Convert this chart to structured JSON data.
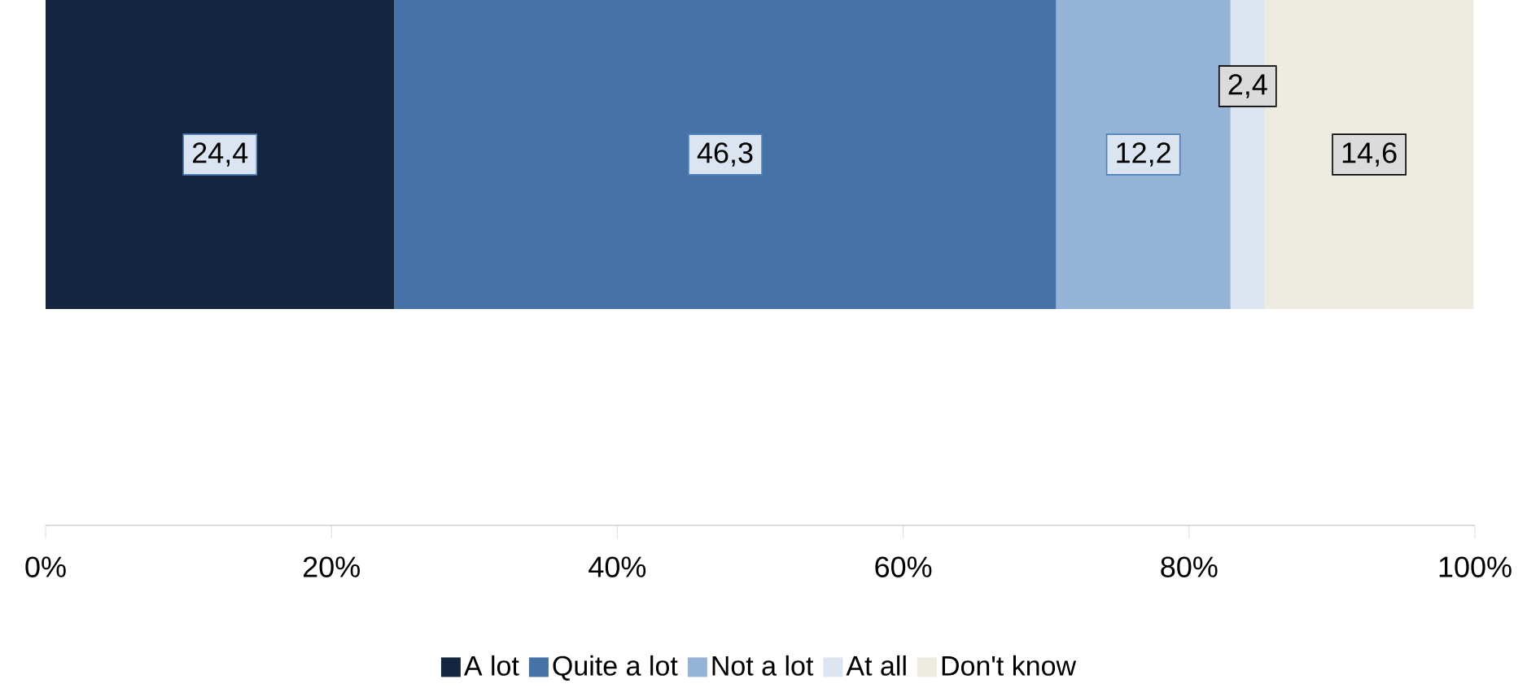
{
  "chart_data": {
    "type": "bar",
    "orientation": "horizontal",
    "stacked": true,
    "categories": [
      null
    ],
    "series": [
      {
        "name": "A lot",
        "color": "#14253f",
        "values": [
          24.4
        ],
        "value_labels": [
          "24,4"
        ]
      },
      {
        "name": "Quite a lot",
        "color": "#4573a7",
        "values": [
          46.3
        ],
        "value_labels": [
          "46,3"
        ]
      },
      {
        "name": "Not a lot",
        "color": "#95b3d7",
        "values": [
          12.2
        ],
        "value_labels": [
          "12,2"
        ]
      },
      {
        "name": "At all",
        "color": "#dce6f2",
        "values": [
          2.4
        ],
        "value_labels": [
          "2,4"
        ]
      },
      {
        "name": "Don't know",
        "color": "#eeece1",
        "values": [
          14.6
        ],
        "value_labels": [
          "14,6"
        ]
      }
    ],
    "xlim": [
      0,
      100
    ],
    "xticks": [
      {
        "value": 0,
        "label": "0%"
      },
      {
        "value": 20,
        "label": "20%"
      },
      {
        "value": 40,
        "label": "40%"
      },
      {
        "value": 60,
        "label": "60%"
      },
      {
        "value": 80,
        "label": "80%"
      },
      {
        "value": 100,
        "label": "100%"
      }
    ],
    "legend": "bottom"
  }
}
